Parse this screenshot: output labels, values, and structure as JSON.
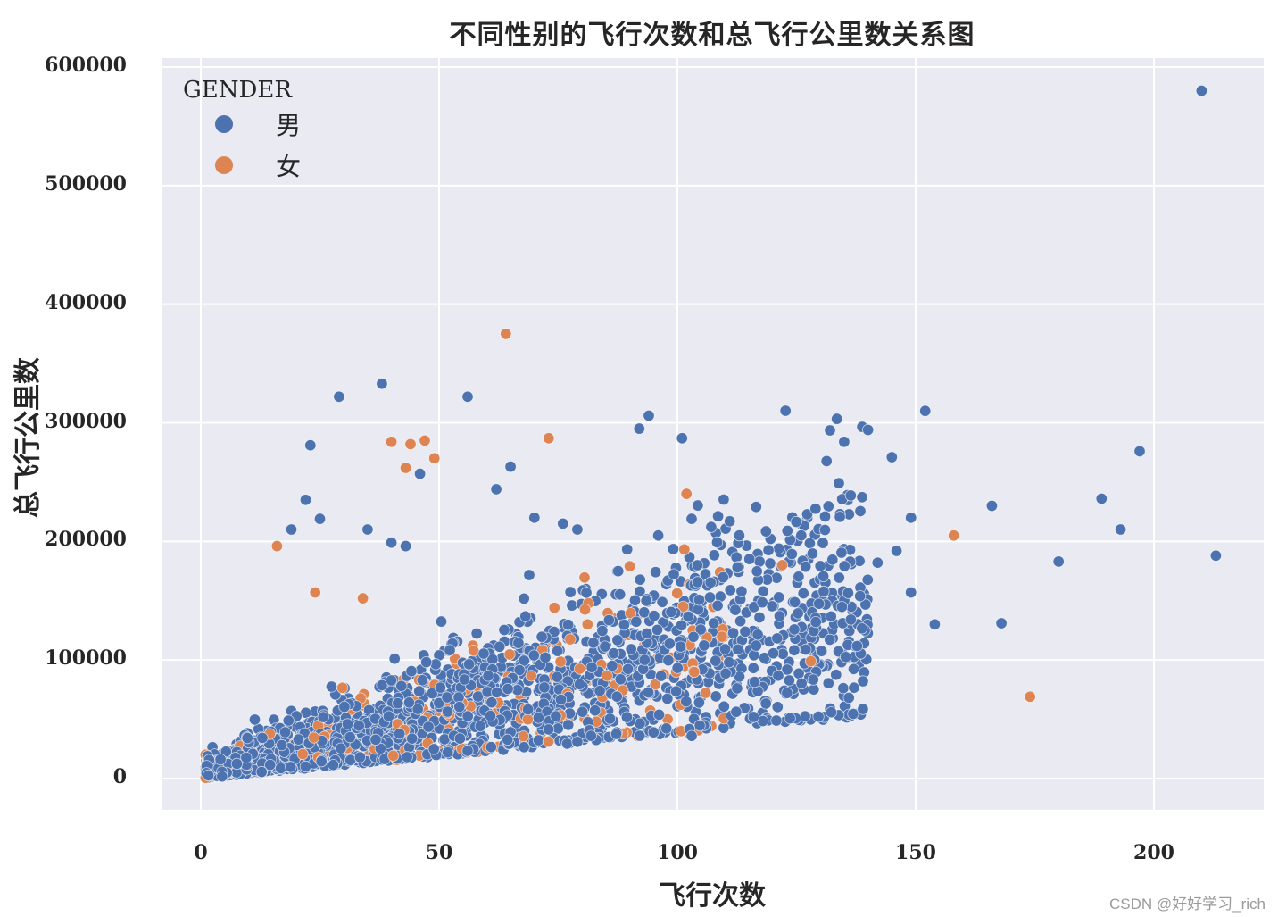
{
  "chart_data": {
    "type": "scatter",
    "title": "不同性别的飞行次数和总飞行公里数关系图",
    "xlabel": "飞行次数",
    "ylabel": "总飞行公里数",
    "xlim": [
      -9,
      222
    ],
    "ylim": [
      -27000,
      608000
    ],
    "xticks": [
      0,
      50,
      100,
      150,
      200
    ],
    "yticks": [
      0,
      100000,
      200000,
      300000,
      400000,
      500000,
      600000
    ],
    "xtick_labels": [
      "0",
      "50",
      "100",
      "150",
      "200"
    ],
    "ytick_labels": [
      "0",
      "100000",
      "200000",
      "300000",
      "400000",
      "500000",
      "600000"
    ],
    "grid": true,
    "legend": {
      "title": "GENDER",
      "position": "upper left",
      "entries": [
        "男",
        "女"
      ]
    },
    "series": [
      {
        "name": "男",
        "color": "#4c72b0",
        "outliers": [
          [
            210,
            580000
          ],
          [
            38,
            333000
          ],
          [
            29,
            322000
          ],
          [
            56,
            322000
          ],
          [
            94,
            306000
          ],
          [
            152,
            310000
          ],
          [
            92,
            295000
          ],
          [
            140,
            294000
          ],
          [
            101,
            287000
          ],
          [
            135,
            284000
          ],
          [
            23,
            281000
          ],
          [
            145,
            271000
          ],
          [
            197,
            276000
          ],
          [
            65,
            263000
          ],
          [
            46,
            257000
          ],
          [
            62,
            244000
          ],
          [
            189,
            236000
          ],
          [
            22,
            235000
          ],
          [
            166,
            230000
          ],
          [
            131,
            221000
          ],
          [
            149,
            220000
          ],
          [
            70,
            220000
          ],
          [
            103,
            219000
          ],
          [
            111,
            217000
          ],
          [
            193,
            210000
          ],
          [
            213,
            188000
          ],
          [
            96,
            205000
          ],
          [
            126,
            205000
          ],
          [
            113,
            205000
          ],
          [
            146,
            192000
          ],
          [
            180,
            183000
          ],
          [
            142,
            182000
          ],
          [
            149,
            157000
          ],
          [
            154,
            130000
          ],
          [
            168,
            131000
          ],
          [
            116,
            52000
          ],
          [
            103,
            36000
          ],
          [
            95,
            39000
          ],
          [
            40,
            199000
          ],
          [
            43,
            196000
          ],
          [
            25,
            219000
          ],
          [
            35,
            210000
          ],
          [
            19,
            210000
          ],
          [
            76,
            215000
          ],
          [
            79,
            210000
          ]
        ],
        "cloud": {
          "count": 2100,
          "x_range": [
            1,
            140
          ],
          "seed": 7
        }
      },
      {
        "name": "女",
        "color": "#dd8452",
        "outliers": [
          [
            64,
            375000
          ],
          [
            40,
            284000
          ],
          [
            44,
            282000
          ],
          [
            47,
            285000
          ],
          [
            73,
            287000
          ],
          [
            43,
            262000
          ],
          [
            49,
            270000
          ],
          [
            158,
            205000
          ],
          [
            174,
            69000
          ],
          [
            16,
            196000
          ],
          [
            122,
            180000
          ],
          [
            128,
            99000
          ],
          [
            90,
            179000
          ],
          [
            24,
            157000
          ],
          [
            34,
            152000
          ]
        ],
        "cloud": {
          "count": 260,
          "x_range": [
            1,
            110
          ],
          "seed": 13
        }
      }
    ]
  },
  "watermark": "CSDN @好好学习_rich"
}
